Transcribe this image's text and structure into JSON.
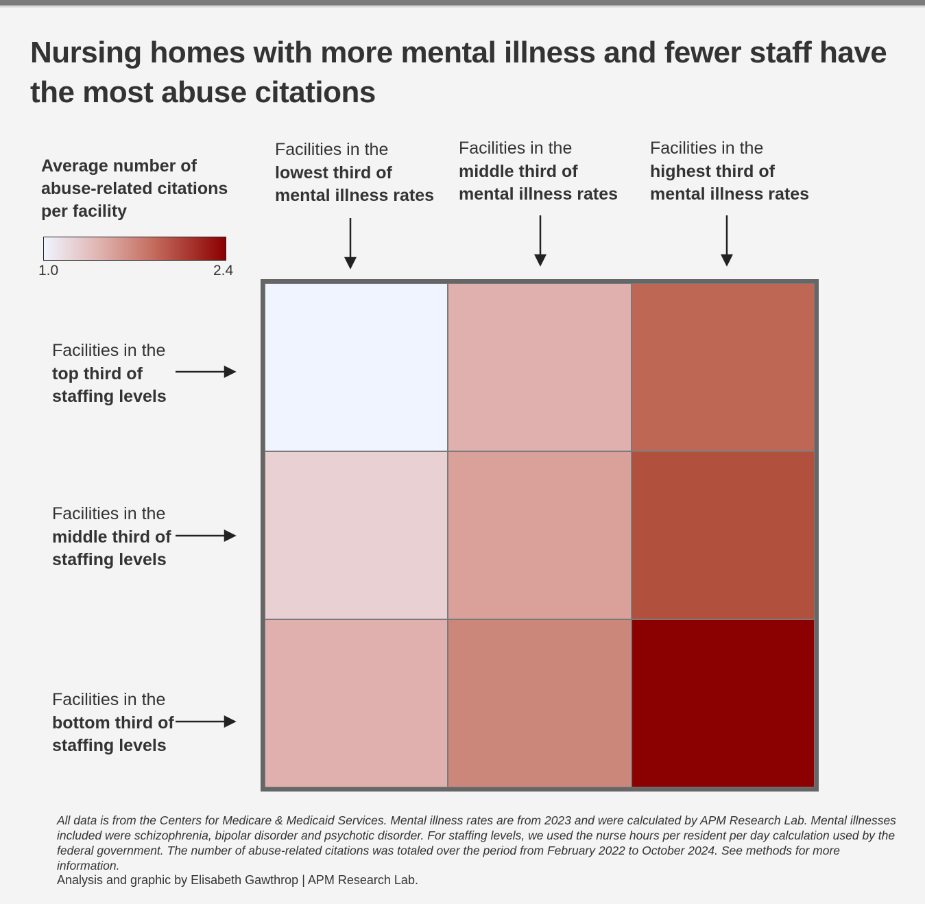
{
  "title": "Nursing homes with more mental illness and fewer staff have the most abuse citations",
  "legend": {
    "title": "Average number of abuse-related citations per facility",
    "min_label": "1.0",
    "max_label": "2.4",
    "min_color": "#f0f4ff",
    "max_color": "#8b0000"
  },
  "columns": [
    {
      "prefix": "Facilities in the",
      "bold": "lowest third of mental illness rates"
    },
    {
      "prefix": "Facilities in the",
      "bold": "middle third of mental illness rates"
    },
    {
      "prefix": "Facilities in the",
      "bold": "highest third of mental illness rates"
    }
  ],
  "rows": [
    {
      "prefix": "Facilities in the",
      "bold": "top third of staffing levels"
    },
    {
      "prefix": "Facilities in the",
      "bold": "middle third of staffing levels"
    },
    {
      "prefix": "Facilities in the",
      "bold": "bottom third of staffing levels"
    }
  ],
  "chart_data": {
    "type": "heatmap",
    "x_categories": [
      "lowest third of mental illness rates",
      "middle third of mental illness rates",
      "highest third of mental illness rates"
    ],
    "y_categories": [
      "top third of staffing levels",
      "middle third of staffing levels",
      "bottom third of staffing levels"
    ],
    "values": [
      [
        1.0,
        1.45,
        1.9
      ],
      [
        1.3,
        1.5,
        2.05
      ],
      [
        1.45,
        1.65,
        2.4
      ]
    ],
    "color_scale": {
      "min": 1.0,
      "max": 2.4
    },
    "cell_colors": [
      [
        "#f0f4ff",
        "#dfb0ad",
        "#bf6755"
      ],
      [
        "#e8d0d3",
        "#d9a19a",
        "#b2503e"
      ],
      [
        "#dfb0ad",
        "#cc877b",
        "#8b0000"
      ]
    ]
  },
  "footnote": "All data is from the Centers for Medicare & Medicaid Services. Mental illness rates are from 2023 and were calculated by APM Research Lab. Mental illnesses included were schizophrenia, bipolar disorder and psychotic disorder. For staffing levels, we used the nurse hours per resident per day calculation used by the federal government. The number of abuse-related citations was totaled over the period from February 2022 to October 2024. See methods for more information.",
  "credit": "Analysis and graphic by Elisabeth Gawthrop | APM Research Lab."
}
